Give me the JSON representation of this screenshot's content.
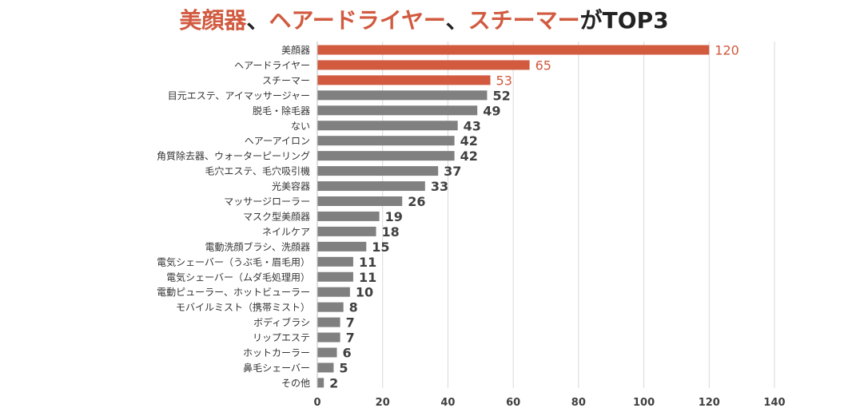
{
  "title": {
    "segments": [
      {
        "text": "美顔器",
        "accent": true
      },
      {
        "text": "、",
        "accent": false
      },
      {
        "text": "ヘアードライヤー",
        "accent": true
      },
      {
        "text": "、",
        "accent": false
      },
      {
        "text": "スチーマー",
        "accent": true
      },
      {
        "text": "がTOP3",
        "accent": false
      }
    ]
  },
  "colors": {
    "highlight": "#d15a3f",
    "bar": "#808080",
    "grid": "#d9d9d9",
    "axis": "#bfbfbf",
    "text": "#333333"
  },
  "chart_data": {
    "type": "bar",
    "orientation": "horizontal",
    "title": "美顔器、ヘアードライヤー、スチーマーがTOP3",
    "categories": [
      "美顔器",
      "ヘアードライヤー",
      "スチーマー",
      "目元エステ、アイマッサージャー",
      "脱毛・除毛器",
      "ない",
      "ヘアーアイロン",
      "角質除去器、ウォーターピーリング",
      "毛穴エステ、毛穴吸引機",
      "光美容器",
      "マッサージローラー",
      "マスク型美顔器",
      "ネイルケア",
      "電動洗顔ブラシ、洗顔器",
      "電気シェーバー（うぶ毛・眉毛用）",
      "電気シェーバー（ムダ毛処理用）",
      "電動ピューラー、ホットビューラー",
      "モバイルミスト（携帯ミスト）",
      "ボディブラシ",
      "リップエステ",
      "ホットカーラー",
      "鼻毛シェーバー",
      "その他"
    ],
    "values": [
      120,
      65,
      53,
      52,
      49,
      43,
      42,
      42,
      37,
      33,
      26,
      19,
      18,
      15,
      11,
      11,
      10,
      8,
      7,
      7,
      6,
      5,
      2
    ],
    "highlight_top": 3,
    "xlim": [
      0,
      140
    ],
    "xticks": [
      0,
      20,
      40,
      60,
      80,
      100,
      120,
      140
    ],
    "grid": true,
    "xlabel": "",
    "ylabel": ""
  }
}
